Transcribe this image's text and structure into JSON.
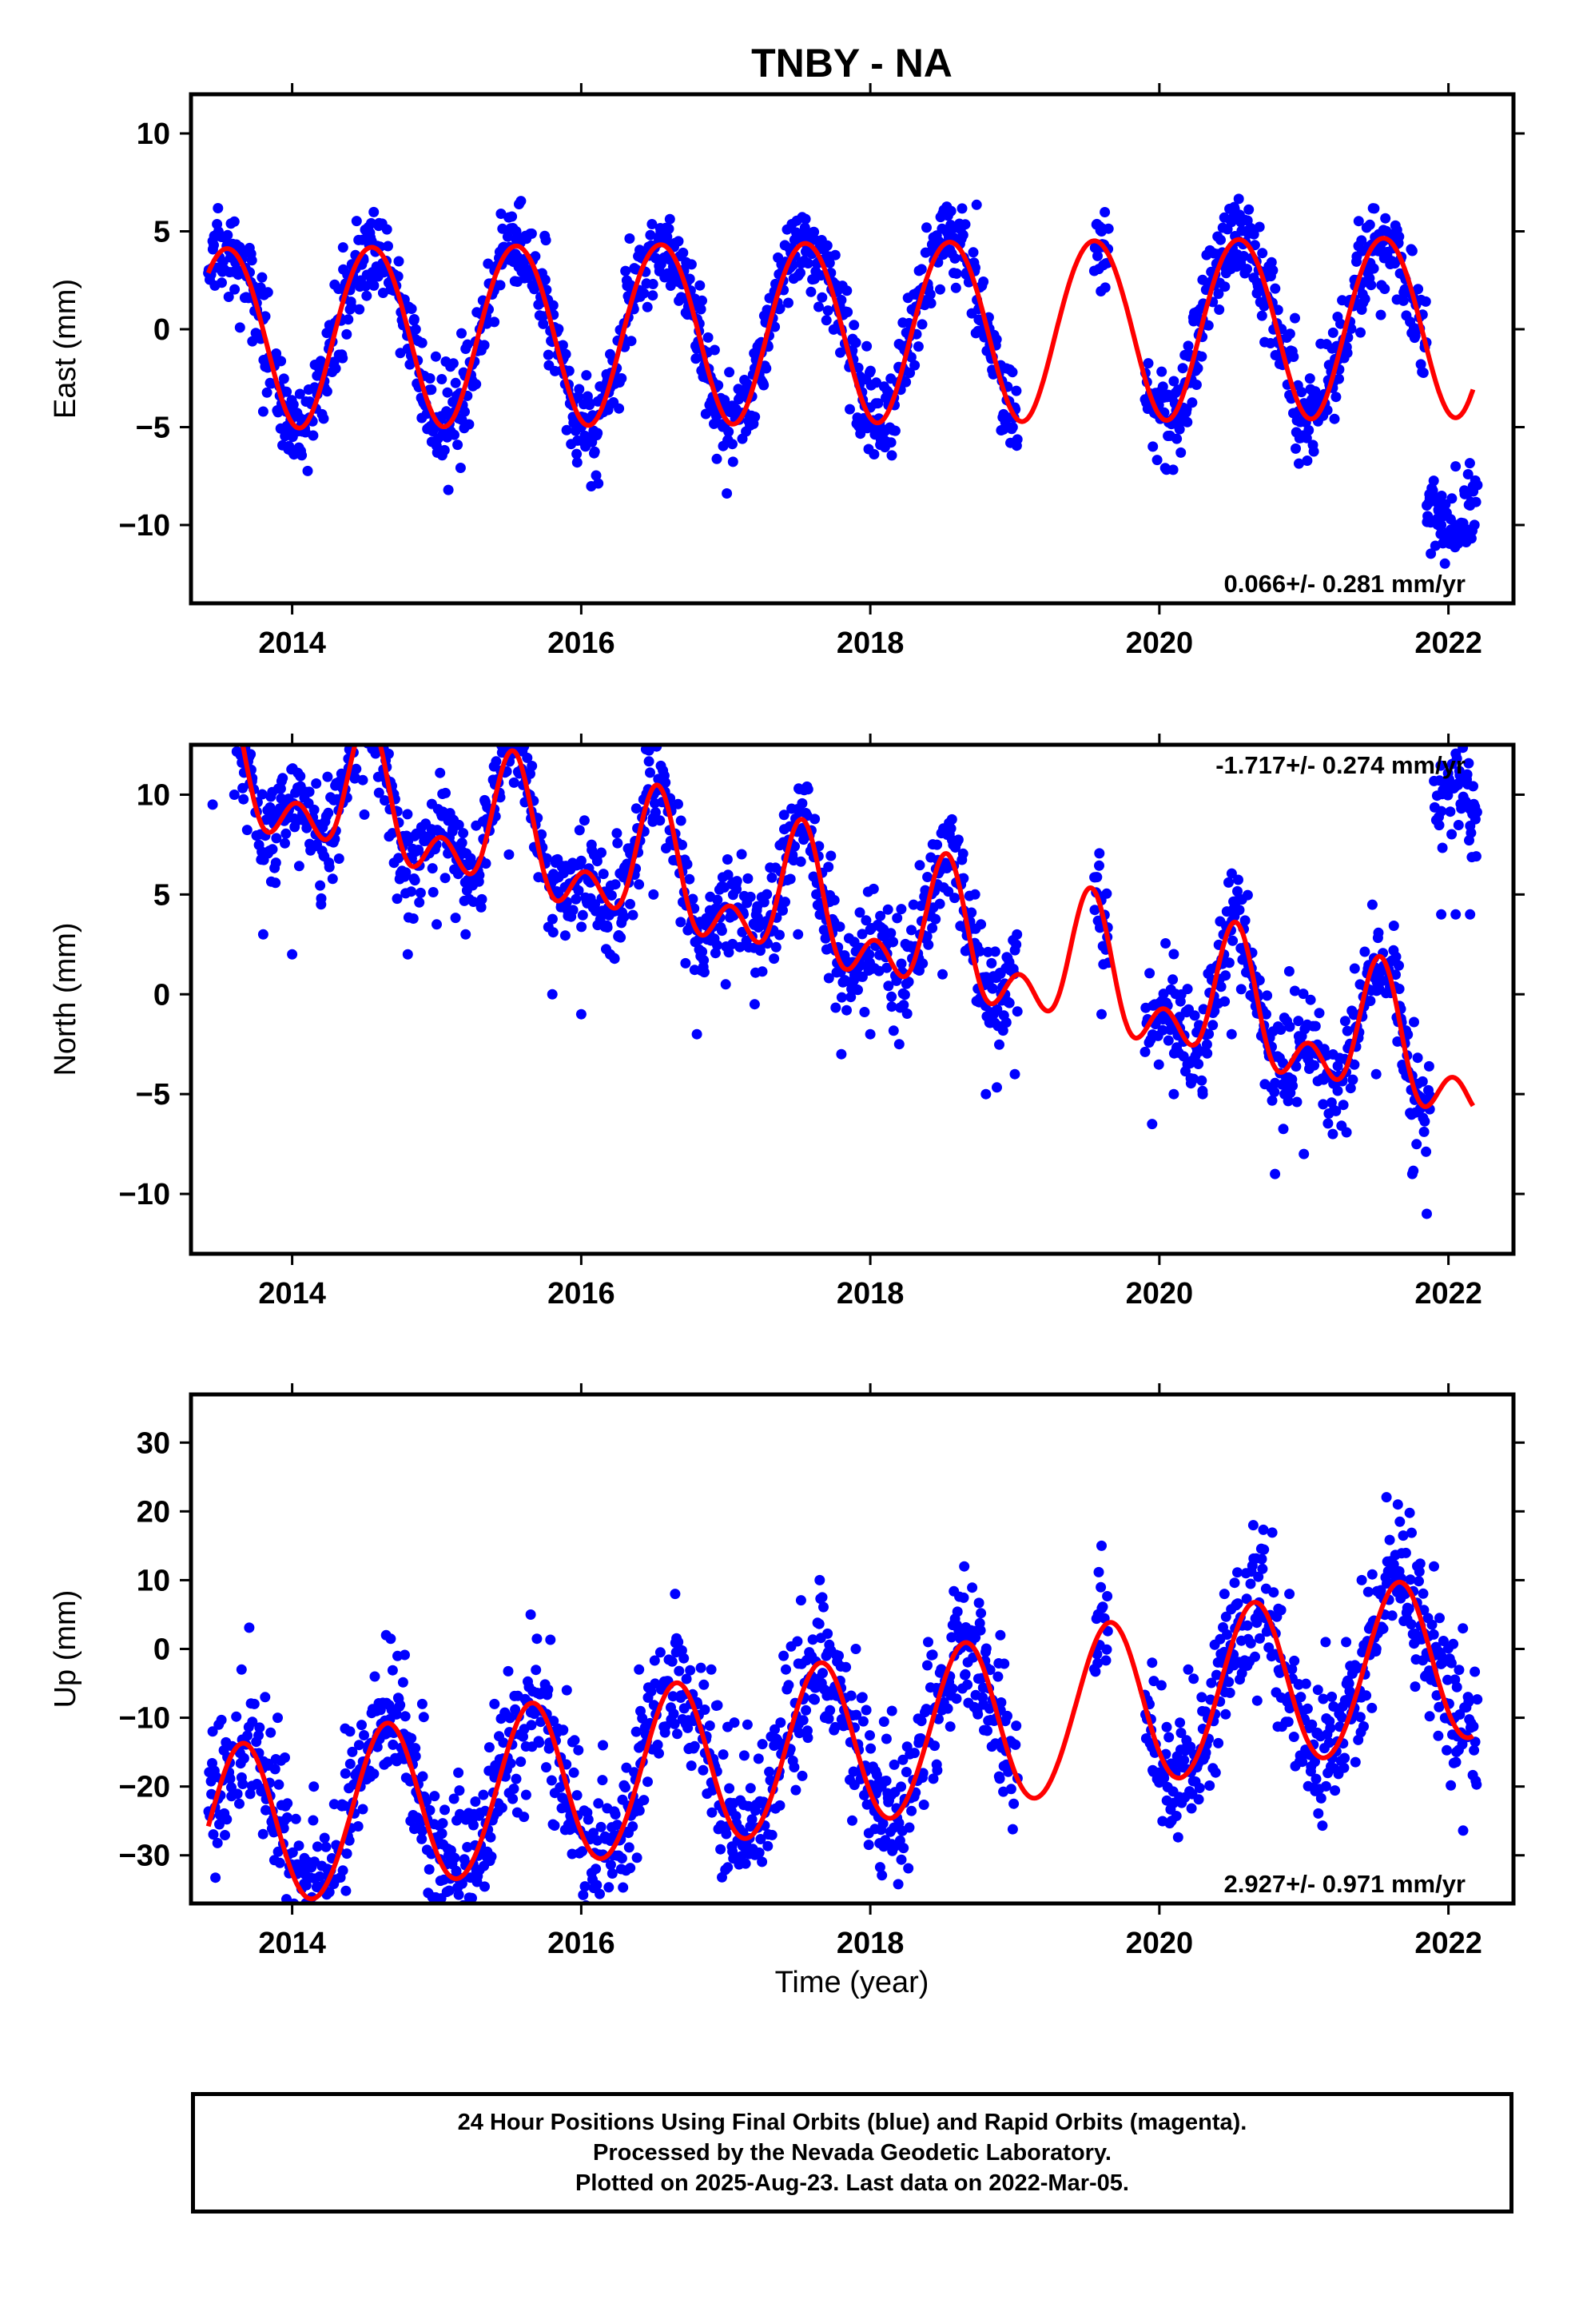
{
  "title": "TNBY - NA",
  "xlabel": "Time (year)",
  "footer": {
    "line1": "24 Hour Positions Using Final Orbits (blue) and Rapid Orbits (magenta).",
    "line2": "Processed by the Nevada Geodetic Laboratory.",
    "line3": "Plotted on 2025-Aug-23. Last data on 2022-Mar-05."
  },
  "colors": {
    "data": "#0000ff",
    "fit": "#ff0000",
    "axes": "#000000"
  },
  "chart_data": [
    {
      "type": "scatter",
      "name": "east",
      "ylabel": "East (mm)",
      "xlim": [
        2013.3,
        2022.45
      ],
      "ylim": [
        -14,
        12
      ],
      "xticks": [
        2014,
        2016,
        2018,
        2020,
        2022
      ],
      "yticks": [
        -10,
        -5,
        0,
        5,
        10
      ],
      "rate_text": "0.066+/- 0.281 mm/yr",
      "rate_position": "bottom-right",
      "grid": false,
      "model": {
        "start": 2013.42,
        "end": 2022.17,
        "velocity": 0.066,
        "annual_amp": 4.6,
        "annual_peak": 0.55,
        "semiannual_amp": 0.2,
        "semiannual_peak": 0.3,
        "offset": 0.0
      },
      "data_segments": [
        [
          2013.42,
          2019.02
        ],
        [
          2019.55,
          2019.65
        ],
        [
          2019.9,
          2022.2
        ]
      ],
      "noise": 1.2,
      "series": [
        {
          "name": "data",
          "x": [
            2013.45,
            2013.6,
            2013.8,
            2014.0,
            2014.2,
            2014.4,
            2014.55,
            2014.8,
            2015.0,
            2015.2,
            2015.4,
            2015.55,
            2015.8,
            2016.0,
            2016.2,
            2016.4,
            2016.55,
            2016.8,
            2017.0,
            2017.2,
            2017.4,
            2017.55,
            2017.8,
            2018.0,
            2018.2,
            2018.4,
            2018.55,
            2018.8,
            2019.0,
            2019.6,
            2019.95,
            2020.1,
            2020.3,
            2020.55,
            2020.8,
            2021.0,
            2021.2,
            2021.4,
            2021.55,
            2021.75,
            2021.85,
            2021.95,
            2022.05,
            2022.15
          ],
          "y": [
            4.5,
            5.5,
            0.5,
            -5,
            -3,
            2,
            4.5,
            -1,
            -4.5,
            -1,
            3,
            5,
            0,
            -5,
            -3,
            2,
            5,
            -1,
            -4,
            -2,
            2,
            5,
            0,
            -4,
            -2,
            2,
            5,
            0,
            -4,
            5,
            -4,
            -4.5,
            0.5,
            4.5,
            0,
            -4,
            -3,
            1,
            4.5,
            4,
            -9,
            -10,
            -10,
            -9
          ]
        },
        {
          "name": "fit",
          "x": [
            2013.42,
            2022.17
          ],
          "y": [
            3.0,
            -2.2
          ]
        }
      ]
    },
    {
      "type": "scatter",
      "name": "north",
      "ylabel": "North (mm)",
      "xlim": [
        2013.3,
        2022.45
      ],
      "ylim": [
        -13,
        12.5
      ],
      "xticks": [
        2014,
        2016,
        2018,
        2020,
        2022
      ],
      "yticks": [
        -10,
        -5,
        0,
        5,
        10
      ],
      "rate_text": "-1.717+/- 0.274 mm/yr",
      "rate_position": "top-right",
      "grid": false,
      "model": {
        "start": 2013.42,
        "end": 2022.17,
        "velocity": -1.717,
        "annual_amp": 2.6,
        "annual_peak": 0.52,
        "semiannual_amp": 1.9,
        "semiannual_peak": 0.03,
        "offset": 7.2,
        "offset_epoch": 2015.82
      },
      "data_segments": [
        [
          2013.42,
          2019.02
        ],
        [
          2019.55,
          2019.65
        ],
        [
          2019.9,
          2021.88
        ],
        [
          2021.9,
          2022.2
        ]
      ],
      "late_shift": {
        "start": 2021.9,
        "value": 15.0
      },
      "noise": 1.3,
      "series": [
        {
          "name": "data",
          "x": [
            2013.45,
            2013.6,
            2013.8,
            2014.0,
            2014.2,
            2014.5,
            2014.8,
            2015.0,
            2015.2,
            2015.5,
            2015.8,
            2016.0,
            2016.2,
            2016.5,
            2016.8,
            2017.0,
            2017.2,
            2017.5,
            2017.8,
            2018.0,
            2018.2,
            2018.5,
            2018.8,
            2019.0,
            2019.6,
            2019.95,
            2020.1,
            2020.3,
            2020.5,
            2020.8,
            2021.0,
            2021.2,
            2021.5,
            2021.75,
            2021.85,
            2021.95,
            2022.05,
            2022.15
          ],
          "y": [
            9.5,
            10,
            3,
            2,
            4.5,
            9,
            2,
            3.5,
            3,
            7,
            0,
            -1,
            2,
            5,
            -2,
            0.5,
            -0.5,
            3,
            -3,
            -2,
            -2.5,
            1,
            -5,
            -4,
            -1,
            -6.5,
            -5,
            -5,
            -2,
            -9,
            -8,
            -7,
            -4,
            -9,
            -11,
            4,
            4,
            4
          ]
        },
        {
          "name": "fit",
          "x": [
            2013.42,
            2022.17
          ],
          "y": [
            9.1,
            -8.6
          ]
        }
      ]
    },
    {
      "type": "scatter",
      "name": "up",
      "ylabel": "Up (mm)",
      "xlim": [
        2013.3,
        2022.45
      ],
      "ylim": [
        -37,
        37
      ],
      "xticks": [
        2014,
        2016,
        2018,
        2020,
        2022
      ],
      "yticks": [
        -30,
        -20,
        -10,
        0,
        10,
        20,
        30
      ],
      "rate_text": "2.927+/- 0.971 mm/yr",
      "rate_position": "bottom-right",
      "grid": false,
      "model": {
        "start": 2013.42,
        "end": 2022.17,
        "velocity": 2.927,
        "annual_amp": 12.0,
        "annual_peak": 0.65,
        "semiannual_amp": 0.5,
        "semiannual_peak": 0.2,
        "offset": -14.0
      },
      "data_segments": [
        [
          2013.42,
          2019.02
        ],
        [
          2019.55,
          2019.65
        ],
        [
          2019.9,
          2022.2
        ]
      ],
      "noise": 5.0,
      "series": [
        {
          "name": "data",
          "x": [
            2013.45,
            2013.65,
            2013.9,
            2014.15,
            2014.4,
            2014.65,
            2014.9,
            2015.15,
            2015.4,
            2015.65,
            2015.9,
            2016.15,
            2016.4,
            2016.65,
            2016.9,
            2017.15,
            2017.4,
            2017.65,
            2017.9,
            2018.15,
            2018.4,
            2018.65,
            2018.9,
            2019.6,
            2019.95,
            2020.2,
            2020.45,
            2020.65,
            2020.9,
            2021.15,
            2021.4,
            2021.65,
            2021.9,
            2022.1
          ],
          "y": [
            -12,
            -3,
            -10,
            -20,
            -12,
            2,
            -8,
            -18,
            -8,
            5,
            -6,
            -14,
            -3,
            8,
            -3,
            -11,
            -1,
            10,
            0,
            -9,
            1,
            12,
            2,
            15,
            -2,
            -3,
            8,
            18,
            8,
            1,
            10,
            21,
            12,
            3
          ]
        },
        {
          "name": "fit",
          "x": [
            2013.42,
            2022.17
          ],
          "y": [
            -12.5,
            3.0
          ]
        }
      ]
    }
  ]
}
